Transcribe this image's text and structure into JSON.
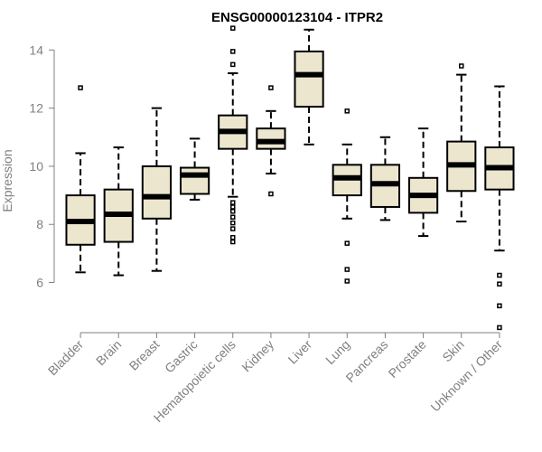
{
  "chart_data": {
    "type": "boxplot",
    "title": "ENSG00000123104 - ITPR2",
    "ylabel": "Expression",
    "xlabel": "",
    "ylim": [
      4.4,
      14.6
    ],
    "yticks": [
      6,
      8,
      10,
      12,
      14
    ],
    "colors": {
      "box_fill": "#EDE6CF",
      "box_stroke": "#000000",
      "axis": "#808080"
    },
    "categories": [
      "Bladder",
      "Brain",
      "Breast",
      "Gastric",
      "Hematopoietic cells",
      "Kidney",
      "Liver",
      "Lung",
      "Pancreas",
      "Prostate",
      "Skin",
      "Unknown / Other"
    ],
    "boxes": [
      {
        "min": 6.35,
        "q1": 7.3,
        "median": 8.1,
        "q3": 9.0,
        "max": 10.45,
        "outliers": [
          12.7
        ]
      },
      {
        "min": 6.25,
        "q1": 7.4,
        "median": 8.35,
        "q3": 9.2,
        "max": 10.65,
        "outliers": []
      },
      {
        "min": 6.4,
        "q1": 8.2,
        "median": 8.95,
        "q3": 10.0,
        "max": 12.0,
        "outliers": []
      },
      {
        "min": 8.85,
        "q1": 9.05,
        "median": 9.7,
        "q3": 9.95,
        "max": 10.95,
        "outliers": []
      },
      {
        "min": 8.95,
        "q1": 10.6,
        "median": 11.2,
        "q3": 11.75,
        "max": 13.2,
        "outliers": [
          14.75,
          13.95,
          13.5,
          8.75,
          8.6,
          8.45,
          8.25,
          8.05,
          7.85,
          7.55,
          7.4
        ]
      },
      {
        "min": 9.75,
        "q1": 10.6,
        "median": 10.85,
        "q3": 11.3,
        "max": 11.9,
        "outliers": [
          12.7,
          9.05
        ]
      },
      {
        "min": 10.75,
        "q1": 12.05,
        "median": 13.15,
        "q3": 13.95,
        "max": 14.7,
        "outliers": []
      },
      {
        "min": 8.2,
        "q1": 9.0,
        "median": 9.6,
        "q3": 10.05,
        "max": 10.75,
        "outliers": [
          11.9,
          7.35,
          6.45,
          6.05
        ]
      },
      {
        "min": 8.15,
        "q1": 8.6,
        "median": 9.4,
        "q3": 10.05,
        "max": 11.0,
        "outliers": []
      },
      {
        "min": 7.6,
        "q1": 8.4,
        "median": 9.0,
        "q3": 9.6,
        "max": 11.3,
        "outliers": []
      },
      {
        "min": 8.1,
        "q1": 9.15,
        "median": 10.05,
        "q3": 10.85,
        "max": 13.15,
        "outliers": [
          13.45
        ]
      },
      {
        "min": 7.1,
        "q1": 9.2,
        "median": 9.95,
        "q3": 10.65,
        "max": 12.75,
        "outliers": [
          6.25,
          5.95,
          5.2,
          4.45
        ]
      }
    ]
  }
}
